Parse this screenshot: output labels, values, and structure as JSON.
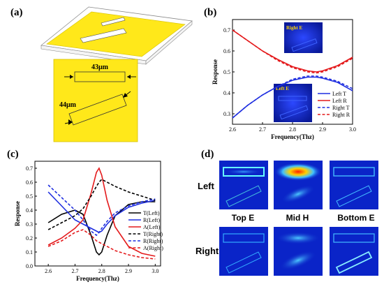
{
  "panels": {
    "a": "(a)",
    "b": "(b)",
    "c": "(c)",
    "d": "(d)"
  },
  "panel_a": {
    "dim1": "43μm",
    "dim2": "44μm"
  },
  "panel_b": {
    "inset_top": "Right E",
    "inset_bottom": "Left E",
    "xlabel": "Frequency(Thz)",
    "ylabel": "Response",
    "xticks": [
      "2.6",
      "2.7",
      "2.8",
      "2.9",
      "3.0"
    ],
    "yticks": [
      "0.3",
      "0.4",
      "0.5",
      "0.6",
      "0.7"
    ],
    "legend": [
      "Left T",
      "Left R",
      "Right T",
      "Right R"
    ]
  },
  "panel_c": {
    "xlabel": "Frequency(Thz)",
    "ylabel": "Response",
    "xticks": [
      "2.6",
      "2.7",
      "2.8",
      "2.9",
      "3.0"
    ],
    "yticks": [
      "0.0",
      "0.1",
      "0.2",
      "0.3",
      "0.4",
      "0.5",
      "0.6",
      "0.7"
    ],
    "legend": [
      "T(Left)",
      "R(Left)",
      "A(Left)",
      "T(Right)",
      "R(Right)",
      "A(Right)"
    ]
  },
  "panel_d": {
    "rows": [
      "Left",
      "Right"
    ],
    "cols": [
      "Top E",
      "Mid H",
      "Bottom E"
    ]
  },
  "colors": {
    "black": "#000000",
    "blue": "#1f2fe0",
    "red": "#e41a1c",
    "yellow": "#ffe81a"
  },
  "chart_data": [
    {
      "type": "line",
      "xlabel": "Frequency(Thz)",
      "ylabel": "Response",
      "xlim": [
        2.6,
        3.0
      ],
      "ylim": [
        0.25,
        0.75
      ],
      "x": [
        2.6,
        2.65,
        2.7,
        2.75,
        2.8,
        2.85,
        2.88,
        2.9,
        2.95,
        3.0
      ],
      "series": [
        {
          "name": "Left T",
          "style": "solid",
          "color": "#1f2fe0",
          "values": [
            0.28,
            0.34,
            0.39,
            0.43,
            0.46,
            0.475,
            0.475,
            0.47,
            0.45,
            0.41
          ]
        },
        {
          "name": "Left R",
          "style": "solid",
          "color": "#e41a1c",
          "values": [
            0.7,
            0.65,
            0.6,
            0.56,
            0.525,
            0.505,
            0.5,
            0.505,
            0.53,
            0.57
          ]
        },
        {
          "name": "Right T",
          "style": "dashed",
          "color": "#1f2fe0",
          "values": [
            0.28,
            0.34,
            0.39,
            0.43,
            0.465,
            0.48,
            0.48,
            0.475,
            0.455,
            0.42
          ]
        },
        {
          "name": "Right R",
          "style": "dashed",
          "color": "#e41a1c",
          "values": [
            0.7,
            0.65,
            0.6,
            0.555,
            0.52,
            0.5,
            0.495,
            0.5,
            0.525,
            0.565
          ]
        }
      ]
    },
    {
      "type": "line",
      "xlabel": "Frequency(Thz)",
      "ylabel": "Response",
      "xlim": [
        2.55,
        3.02
      ],
      "ylim": [
        0.0,
        0.75
      ],
      "x": [
        2.6,
        2.65,
        2.7,
        2.73,
        2.76,
        2.78,
        2.79,
        2.8,
        2.82,
        2.85,
        2.9,
        2.95,
        3.0
      ],
      "series": [
        {
          "name": "T(Left)",
          "style": "solid",
          "color": "#000000",
          "values": [
            0.31,
            0.37,
            0.4,
            0.37,
            0.22,
            0.1,
            0.08,
            0.1,
            0.22,
            0.36,
            0.44,
            0.46,
            0.46
          ]
        },
        {
          "name": "R(Left)",
          "style": "solid",
          "color": "#1f2fe0",
          "values": [
            0.53,
            0.43,
            0.33,
            0.3,
            0.27,
            0.25,
            0.24,
            0.25,
            0.3,
            0.36,
            0.42,
            0.45,
            0.47
          ]
        },
        {
          "name": "A(Left)",
          "style": "solid",
          "color": "#e41a1c",
          "values": [
            0.15,
            0.2,
            0.27,
            0.33,
            0.52,
            0.67,
            0.7,
            0.65,
            0.47,
            0.28,
            0.14,
            0.09,
            0.07
          ]
        },
        {
          "name": "T(Right)",
          "style": "dashed",
          "color": "#000000",
          "values": [
            0.26,
            0.31,
            0.36,
            0.41,
            0.5,
            0.57,
            0.6,
            0.62,
            0.6,
            0.57,
            0.53,
            0.5,
            0.47
          ]
        },
        {
          "name": "R(Right)",
          "style": "dashed",
          "color": "#1f2fe0",
          "values": [
            0.58,
            0.49,
            0.4,
            0.33,
            0.25,
            0.22,
            0.24,
            0.27,
            0.32,
            0.38,
            0.43,
            0.46,
            0.48
          ]
        },
        {
          "name": "A(Right)",
          "style": "dashed",
          "color": "#e41a1c",
          "values": [
            0.14,
            0.18,
            0.24,
            0.26,
            0.22,
            0.18,
            0.17,
            0.16,
            0.14,
            0.11,
            0.08,
            0.06,
            0.05
          ]
        }
      ]
    }
  ]
}
